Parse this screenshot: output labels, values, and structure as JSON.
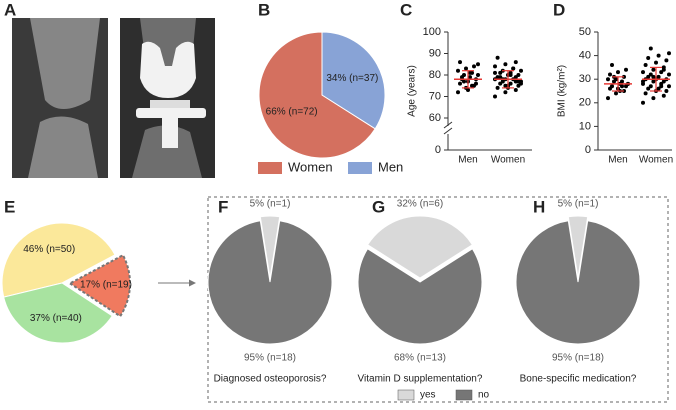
{
  "image_panel": {
    "label": "A"
  },
  "chart_data": [
    {
      "type": "pie",
      "label": "B",
      "categories": [
        "Women",
        "Men"
      ],
      "values": [
        66,
        34
      ],
      "value_labels": [
        "66% (n=72)",
        "34% (n=37)"
      ],
      "colors": [
        "#d4705f",
        "#88a3d6"
      ],
      "legend": "bottom"
    },
    {
      "type": "strip",
      "label": "C",
      "ylabel": "Age (years)",
      "categories": [
        "Men",
        "Women"
      ],
      "ylim": [
        0,
        100
      ],
      "ybreak": [
        0,
        60
      ],
      "yticks": [
        0,
        60,
        70,
        80,
        90,
        100
      ],
      "point_color": "#000000",
      "mean_color": "#e53935",
      "groups": [
        {
          "values": [
            72,
            74,
            75,
            76,
            77,
            78,
            78,
            79,
            80,
            80,
            81,
            82,
            83,
            84,
            86,
            73,
            76,
            79,
            81,
            85,
            77,
            75
          ],
          "mean": 78,
          "sd": 4
        },
        {
          "values": [
            70,
            72,
            73,
            74,
            75,
            75,
            76,
            76,
            77,
            77,
            78,
            78,
            78,
            79,
            79,
            80,
            80,
            81,
            81,
            82,
            82,
            83,
            84,
            85,
            86,
            88,
            74,
            77,
            79,
            80,
            76,
            78,
            83,
            81,
            75,
            77
          ],
          "mean": 78,
          "sd": 4
        }
      ]
    },
    {
      "type": "strip",
      "label": "D",
      "ylabel": "BMI (kg/m²)",
      "categories": [
        "Men",
        "Women"
      ],
      "ylim": [
        0,
        50
      ],
      "yticks": [
        0,
        10,
        20,
        30,
        40,
        50
      ],
      "point_color": "#000000",
      "mean_color": "#e53935",
      "groups": [
        {
          "values": [
            22,
            24,
            25,
            26,
            26,
            27,
            27,
            28,
            28,
            29,
            29,
            30,
            30,
            31,
            32,
            33,
            34,
            36,
            25,
            28,
            31,
            27
          ],
          "mean": 28,
          "sd": 3
        },
        {
          "values": [
            20,
            22,
            23,
            24,
            25,
            25,
            26,
            26,
            27,
            27,
            28,
            28,
            29,
            29,
            30,
            30,
            30,
            31,
            31,
            32,
            32,
            33,
            33,
            34,
            35,
            36,
            37,
            38,
            39,
            40,
            41,
            43,
            27,
            29,
            31,
            34
          ],
          "mean": 30,
          "sd": 5
        }
      ]
    },
    {
      "type": "pie",
      "label": "E",
      "values": [
        46,
        37,
        17
      ],
      "value_labels": [
        "46% (n=50)",
        "37% (n=40)",
        "17% (n=19)"
      ],
      "colors": [
        "#fbe89a",
        "#a8e3a0",
        "#f07a5f"
      ]
    },
    {
      "type": "pie",
      "label": "F",
      "title": "Diagnosed osteoporosis?",
      "categories": [
        "yes",
        "no"
      ],
      "values": [
        5,
        95
      ],
      "value_labels": [
        "5% (n=1)",
        "95% (n=18)"
      ],
      "colors": [
        "#d9d9d9",
        "#767676"
      ],
      "legend": "bottom"
    },
    {
      "type": "pie",
      "label": "G",
      "title": "Vitamin D supplementation?",
      "categories": [
        "yes",
        "no"
      ],
      "values": [
        32,
        68
      ],
      "value_labels": [
        "32% (n=6)",
        "68% (n=13)"
      ],
      "colors": [
        "#d9d9d9",
        "#767676"
      ]
    },
    {
      "type": "pie",
      "label": "H",
      "title": "Bone-specific medication?",
      "categories": [
        "yes",
        "no"
      ],
      "values": [
        5,
        95
      ],
      "value_labels": [
        "5% (n=1)",
        "95% (n=18)"
      ],
      "colors": [
        "#d9d9d9",
        "#767676"
      ]
    }
  ]
}
